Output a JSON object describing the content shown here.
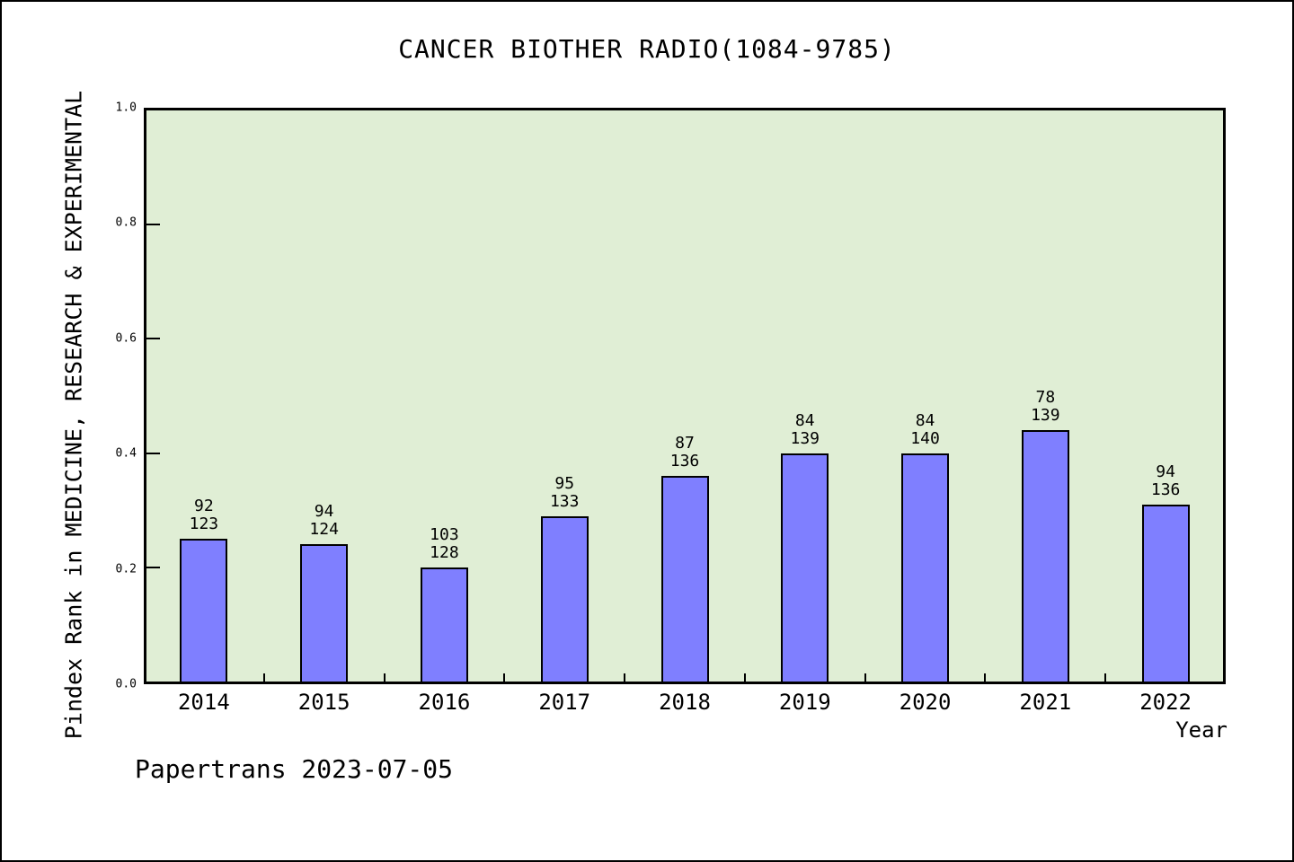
{
  "window": {
    "background": "#ffffff",
    "border_color": "#000000"
  },
  "chart_data": {
    "type": "bar",
    "title": "CANCER BIOTHER RADIO(1084-9785)",
    "xlabel": "Year",
    "ylabel": "Pindex Rank in MEDICINE, RESEARCH & EXPERIMENTAL",
    "footer": "Papertrans 2023-07-05",
    "categories": [
      "2014",
      "2015",
      "2016",
      "2017",
      "2018",
      "2019",
      "2020",
      "2021",
      "2022"
    ],
    "values": [
      0.25,
      0.24,
      0.2,
      0.29,
      0.36,
      0.4,
      0.4,
      0.44,
      0.31
    ],
    "bar_labels": [
      [
        "92",
        "123"
      ],
      [
        "94",
        "124"
      ],
      [
        "103",
        "128"
      ],
      [
        "95",
        "133"
      ],
      [
        "87",
        "136"
      ],
      [
        "84",
        "139"
      ],
      [
        "84",
        "140"
      ],
      [
        "78",
        "139"
      ],
      [
        "94",
        "136"
      ]
    ],
    "ylim": [
      0,
      1
    ],
    "yticks": [
      0.0,
      0.2,
      0.4,
      0.6,
      0.8,
      1.0
    ],
    "ytick_labels": [
      "0.0",
      "0.2",
      "0.4",
      "0.6",
      "0.8",
      "1.0"
    ],
    "grid": "off",
    "legend": "none",
    "colors": {
      "bar_fill": "#7f7fff",
      "bar_edge": "#000000",
      "plot_background": "#e0eed5",
      "axis": "#000000",
      "text": "#000000"
    }
  }
}
